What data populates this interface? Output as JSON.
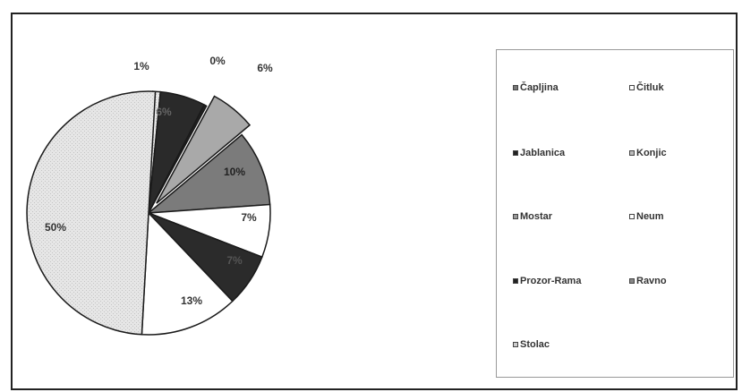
{
  "chart_data": {
    "type": "pie",
    "slices": [
      {
        "name": "Čapljina",
        "value": 1,
        "label": "1%",
        "color": "#e2e2e2",
        "pattern": "light",
        "label_color": "#333333"
      },
      {
        "name": "Čitluk",
        "value": 6,
        "label": "6%",
        "color": "#2a2a2a",
        "pattern": "solid",
        "label_color": "#666666"
      },
      {
        "name": "Jablanica",
        "value": 0,
        "label": "0%",
        "color": "#222222",
        "pattern": "solid",
        "label_color": "#333333"
      },
      {
        "name": "Konjic",
        "value": 6,
        "label": "6%",
        "color": "#a9a9a9",
        "pattern": "solid",
        "label_color": "#333333",
        "exploded": true
      },
      {
        "name": "Mostar",
        "value": 10,
        "label": "10%",
        "color": "#7b7b7b",
        "pattern": "solid",
        "label_color": "#222222"
      },
      {
        "name": "Neum",
        "value": 7,
        "label": "7%",
        "color": "#ffffff",
        "pattern": "solid",
        "label_color": "#333333"
      },
      {
        "name": "Prozor-Rama",
        "value": 7,
        "label": "7%",
        "color": "#2b2b2b",
        "pattern": "solid",
        "label_color": "#555555"
      },
      {
        "name": "Ravno",
        "value": 13,
        "label": "13%",
        "color": "#ffffff",
        "pattern": "solid",
        "label_color": "#333333"
      },
      {
        "name": "Stolac",
        "value": 50,
        "label": "50%",
        "color": "#e4e4e4",
        "pattern": "dotted",
        "label_color": "#333333"
      }
    ],
    "legend": {
      "placement": "right",
      "entries": [
        "Čapljina",
        "Čitluk",
        "Jablanica",
        "Konjic",
        "Mostar",
        "Neum",
        "Prozor-Rama",
        "Ravno",
        "Stolac"
      ],
      "swatch_colors": [
        "#777777",
        "#ffffff",
        "#222222",
        "#bbbbbb",
        "#999999",
        "#ffffff",
        "#222222",
        "#888888",
        "#cccccc"
      ]
    },
    "title": ""
  }
}
